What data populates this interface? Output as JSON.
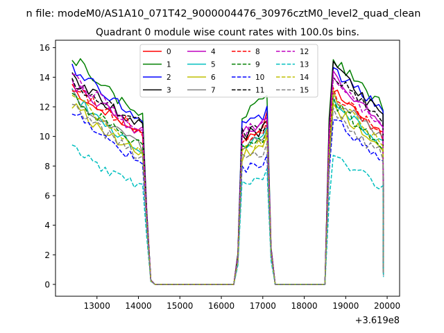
{
  "chart_data": {
    "type": "line",
    "suptitle": "n file: modeM0/AS1A10_071T42_9000004476_30976cztM0_level2_quad_clean",
    "title": "Quadrant 0 module wise count rates with 100.0s bins.",
    "xlabel": "",
    "ylabel": "",
    "x_offset_label": "+3.619e8",
    "xlim": [
      12000,
      20300
    ],
    "ylim": [
      -0.8,
      16.5
    ],
    "xticks": [
      13000,
      14000,
      15000,
      16000,
      17000,
      18000,
      19000,
      20000
    ],
    "xtick_labels": [
      "13000",
      "14000",
      "15000",
      "16000",
      "17000",
      "18000",
      "19000",
      "20000"
    ],
    "yticks": [
      0,
      2,
      4,
      6,
      8,
      10,
      12,
      14,
      16
    ],
    "ytick_labels": [
      "0",
      "2",
      "4",
      "6",
      "8",
      "10",
      "12",
      "14",
      "16"
    ],
    "grid": false,
    "legend": {
      "position": "upper-center",
      "columns": 4,
      "entries": [
        "0",
        "1",
        "2",
        "3",
        "4",
        "5",
        "6",
        "7",
        "8",
        "9",
        "10",
        "11",
        "12",
        "13",
        "14",
        "15"
      ]
    },
    "shape": {
      "seg1": {
        "start": 12400,
        "end": 14100,
        "drop": [
          14200,
          14300
        ]
      },
      "seg2": {
        "rise": [
          16300,
          16400
        ],
        "start": 16500,
        "end": 17100,
        "drop": [
          17200,
          17300
        ]
      },
      "seg3": {
        "rise": [
          18500,
          18600
        ],
        "start": 18700,
        "end": 19900
      },
      "zero_level": 0.0
    },
    "series": [
      {
        "name": "0",
        "color": "#ff0000",
        "dash": "solid",
        "seg1": [
          13.2,
          10.0
        ],
        "seg2": [
          9.8,
          10.8
        ],
        "seg3": [
          13.3,
          10.0
        ],
        "drop": [
          4.5,
          1.3
        ],
        "rise": [
          1.8,
          8.8
        ],
        "end": 0.8
      },
      {
        "name": "1",
        "color": "#008000",
        "dash": "solid",
        "seg1": [
          15.5,
          11.2
        ],
        "seg2": [
          11.3,
          12.5
        ],
        "seg3": [
          15.4,
          12.0
        ],
        "drop": [
          5.0,
          1.4
        ],
        "rise": [
          2.1,
          11.2
        ],
        "end": 0.9
      },
      {
        "name": "2",
        "color": "#0000ff",
        "dash": "solid",
        "seg1": [
          14.8,
          10.9
        ],
        "seg2": [
          10.8,
          11.6
        ],
        "seg3": [
          14.6,
          12.0
        ],
        "drop": [
          4.9,
          1.4
        ],
        "rise": [
          2.0,
          10.5
        ],
        "end": 0.9
      },
      {
        "name": "3",
        "color": "#000000",
        "dash": "solid",
        "seg1": [
          14.0,
          10.7
        ],
        "seg2": [
          10.0,
          10.5
        ],
        "seg3": [
          15.0,
          11.3
        ],
        "drop": [
          4.8,
          1.4
        ],
        "rise": [
          2.0,
          10.8
        ],
        "end": 0.9
      },
      {
        "name": "4",
        "color": "#bf00bf",
        "dash": "solid",
        "seg1": [
          13.6,
          10.2
        ],
        "seg2": [
          10.4,
          11.0
        ],
        "seg3": [
          14.2,
          11.0
        ],
        "drop": [
          4.7,
          1.3
        ],
        "rise": [
          1.9,
          10.2
        ],
        "end": 0.8
      },
      {
        "name": "5",
        "color": "#00bfbf",
        "dash": "solid",
        "seg1": [
          13.0,
          9.0
        ],
        "seg2": [
          9.3,
          10.5
        ],
        "seg3": [
          12.6,
          9.6
        ],
        "drop": [
          4.3,
          1.2
        ],
        "rise": [
          1.7,
          8.5
        ],
        "end": 0.7
      },
      {
        "name": "6",
        "color": "#bfbf00",
        "dash": "solid",
        "seg1": [
          12.2,
          8.6
        ],
        "seg2": [
          8.6,
          9.6
        ],
        "seg3": [
          12.0,
          9.3
        ],
        "drop": [
          4.1,
          1.2
        ],
        "rise": [
          1.6,
          8.0
        ],
        "end": 0.7
      },
      {
        "name": "7",
        "color": "#808080",
        "dash": "solid",
        "seg1": [
          12.8,
          9.2
        ],
        "seg2": [
          9.4,
          10.0
        ],
        "seg3": [
          12.8,
          9.8
        ],
        "drop": [
          4.4,
          1.3
        ],
        "rise": [
          1.8,
          8.8
        ],
        "end": 0.7
      },
      {
        "name": "8",
        "color": "#ff0000",
        "dash": "dashed",
        "seg1": [
          13.4,
          10.3
        ],
        "seg2": [
          9.7,
          10.4
        ],
        "seg3": [
          13.0,
          10.4
        ],
        "drop": [
          4.6,
          1.3
        ],
        "rise": [
          1.8,
          9.4
        ],
        "end": 0.8
      },
      {
        "name": "9",
        "color": "#008000",
        "dash": "dashed",
        "seg1": [
          12.6,
          9.4
        ],
        "seg2": [
          9.0,
          9.9
        ],
        "seg3": [
          12.4,
          9.5
        ],
        "drop": [
          4.3,
          1.2
        ],
        "rise": [
          1.7,
          8.8
        ],
        "end": 0.7
      },
      {
        "name": "10",
        "color": "#0000ff",
        "dash": "dashed",
        "seg1": [
          11.8,
          8.1
        ],
        "seg2": [
          7.8,
          8.4
        ],
        "seg3": [
          11.3,
          8.4
        ],
        "drop": [
          3.9,
          1.1
        ],
        "rise": [
          1.5,
          7.6
        ],
        "end": 0.6
      },
      {
        "name": "11",
        "color": "#000000",
        "dash": "dashed",
        "seg1": [
          13.8,
          10.8
        ],
        "seg2": [
          10.2,
          10.5
        ],
        "seg3": [
          14.2,
          11.0
        ],
        "drop": [
          4.8,
          1.4
        ],
        "rise": [
          1.9,
          10.0
        ],
        "end": 0.9
      },
      {
        "name": "12",
        "color": "#bf00bf",
        "dash": "dashed",
        "seg1": [
          14.2,
          10.4
        ],
        "seg2": [
          10.3,
          10.9
        ],
        "seg3": [
          13.8,
          10.9
        ],
        "drop": [
          4.7,
          1.3
        ],
        "rise": [
          1.9,
          10.0
        ],
        "end": 0.8
      },
      {
        "name": "13",
        "color": "#00bfbf",
        "dash": "dashed",
        "seg1": [
          9.3,
          6.5
        ],
        "seg2": [
          6.6,
          7.0
        ],
        "seg3": [
          8.7,
          6.5
        ],
        "drop": [
          3.2,
          1.0
        ],
        "rise": [
          1.3,
          5.6
        ],
        "end": 0.5
      },
      {
        "name": "14",
        "color": "#bfbf00",
        "dash": "dashed",
        "seg1": [
          12.9,
          9.0
        ],
        "seg2": [
          8.9,
          9.7
        ],
        "seg3": [
          12.7,
          9.6
        ],
        "drop": [
          4.2,
          1.2
        ],
        "rise": [
          1.6,
          8.6
        ],
        "end": 0.7
      },
      {
        "name": "15",
        "color": "#808080",
        "dash": "dashed",
        "seg1": [
          12.0,
          8.5
        ],
        "seg2": [
          8.6,
          8.9
        ],
        "seg3": [
          11.6,
          8.7
        ],
        "drop": [
          4.0,
          1.1
        ],
        "rise": [
          1.6,
          8.0
        ],
        "end": 0.6
      }
    ]
  }
}
